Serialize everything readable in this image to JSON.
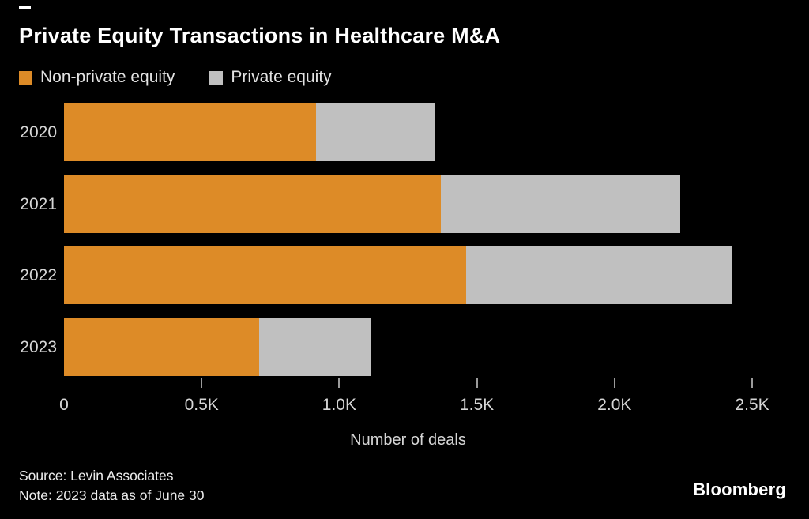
{
  "header": {
    "title": "Private Equity Transactions in Healthcare M&A"
  },
  "colors": {
    "background": "#000000",
    "non_private_equity": "#dd8b27",
    "private_equity": "#c0c0c0",
    "text_primary": "#ffffff",
    "text_secondary": "#d6d6d6",
    "tick": "#9b9b9b"
  },
  "chart_data": {
    "type": "bar",
    "orientation": "horizontal",
    "stacked": true,
    "title": "Private Equity Transactions in Healthcare M&A",
    "categories": [
      "2020",
      "2021",
      "2022",
      "2023"
    ],
    "series": [
      {
        "name": "Non-private equity",
        "color": "#dd8b27",
        "values": [
          915,
          1370,
          1460,
          710
        ]
      },
      {
        "name": "Private equity",
        "color": "#c0c0c0",
        "values": [
          430,
          870,
          965,
          405
        ]
      }
    ],
    "totals": [
      1345,
      2240,
      2425,
      1115
    ],
    "xlabel": "Number of deals",
    "ylabel": "",
    "xlim": [
      0,
      2500
    ],
    "xticks": [
      {
        "value": 0,
        "label": "0",
        "mark": false
      },
      {
        "value": 500,
        "label": "0.5K",
        "mark": true
      },
      {
        "value": 1000,
        "label": "1.0K",
        "mark": true
      },
      {
        "value": 1500,
        "label": "1.5K",
        "mark": true
      },
      {
        "value": 2000,
        "label": "2.0K",
        "mark": true
      },
      {
        "value": 2500,
        "label": "2.5K",
        "mark": true
      }
    ],
    "grid": false,
    "legend_position": "top-left"
  },
  "footer": {
    "source": "Source: Levin Associates",
    "note": "Note: 2023 data as of June 30",
    "brand": "Bloomberg"
  }
}
